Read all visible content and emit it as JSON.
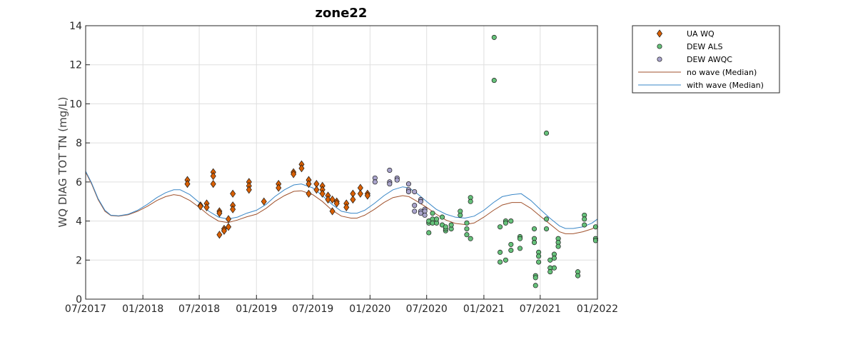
{
  "chart_data": {
    "type": "scatter",
    "title": "zone22",
    "xlabel": "",
    "ylabel": "WQ DIAG TOT TN (mg/L)",
    "xlim": [
      "2017-07-01",
      "2022-01-01"
    ],
    "ylim": [
      0,
      14
    ],
    "x_ticks": [
      "2017-07-01",
      "2018-01-01",
      "2018-07-01",
      "2019-01-01",
      "2019-07-01",
      "2020-01-01",
      "2020-07-01",
      "2021-01-01",
      "2021-07-01",
      "2022-01-01"
    ],
    "x_tick_labels": [
      "07/2017",
      "01/2018",
      "07/2018",
      "01/2019",
      "07/2019",
      "01/2020",
      "07/2020",
      "01/2021",
      "07/2021",
      "01/2022"
    ],
    "y_ticks": [
      0,
      2,
      4,
      6,
      8,
      10,
      12,
      14
    ],
    "y_tick_labels": [
      "0",
      "2",
      "4",
      "6",
      "8",
      "10",
      "12",
      "14"
    ],
    "grid": true,
    "legend_position": "outside-top-right",
    "colors": {
      "ua_wq": "#d95f02",
      "dew_als": "#66c17a",
      "dew_awqc": "#a9a4cc",
      "no_wave": "#a0522d",
      "with_wave": "#3a87c7"
    },
    "series": [
      {
        "name": "UA WQ",
        "kind": "markers",
        "marker": "diamond",
        "color": "#d95f02",
        "points": [
          [
            "2018-05-24",
            6.1
          ],
          [
            "2018-05-24",
            5.9
          ],
          [
            "2018-07-05",
            4.8
          ],
          [
            "2018-07-05",
            4.75
          ],
          [
            "2018-07-25",
            4.9
          ],
          [
            "2018-07-25",
            4.7
          ],
          [
            "2018-08-15",
            6.5
          ],
          [
            "2018-08-15",
            6.3
          ],
          [
            "2018-08-15",
            5.9
          ],
          [
            "2018-09-04",
            4.5
          ],
          [
            "2018-09-04",
            4.4
          ],
          [
            "2018-09-04",
            3.3
          ],
          [
            "2018-09-19",
            3.6
          ],
          [
            "2018-09-19",
            3.5
          ],
          [
            "2018-10-03",
            4.1
          ],
          [
            "2018-10-03",
            3.7
          ],
          [
            "2018-10-17",
            5.4
          ],
          [
            "2018-10-17",
            4.8
          ],
          [
            "2018-10-17",
            4.6
          ],
          [
            "2018-12-08",
            6.0
          ],
          [
            "2018-12-08",
            5.8
          ],
          [
            "2018-12-08",
            5.6
          ],
          [
            "2019-01-25",
            5.0
          ],
          [
            "2019-03-13",
            5.9
          ],
          [
            "2019-03-13",
            5.7
          ],
          [
            "2019-04-30",
            6.5
          ],
          [
            "2019-04-30",
            6.4
          ],
          [
            "2019-05-26",
            6.9
          ],
          [
            "2019-05-26",
            6.7
          ],
          [
            "2019-06-18",
            6.1
          ],
          [
            "2019-06-18",
            5.9
          ],
          [
            "2019-06-18",
            5.4
          ],
          [
            "2019-07-13",
            5.9
          ],
          [
            "2019-07-13",
            5.6
          ],
          [
            "2019-08-01",
            5.8
          ],
          [
            "2019-08-01",
            5.6
          ],
          [
            "2019-08-01",
            5.4
          ],
          [
            "2019-08-19",
            5.3
          ],
          [
            "2019-08-19",
            5.1
          ],
          [
            "2019-09-02",
            5.1
          ],
          [
            "2019-09-02",
            4.5
          ],
          [
            "2019-09-16",
            5.0
          ],
          [
            "2019-09-16",
            4.9
          ],
          [
            "2019-10-17",
            4.9
          ],
          [
            "2019-10-17",
            4.7
          ],
          [
            "2019-11-07",
            5.4
          ],
          [
            "2019-11-07",
            5.1
          ],
          [
            "2019-12-01",
            5.7
          ],
          [
            "2019-12-01",
            5.4
          ],
          [
            "2019-12-24",
            5.4
          ],
          [
            "2019-12-24",
            5.3
          ]
        ]
      },
      {
        "name": "DEW ALS",
        "kind": "markers",
        "marker": "circle",
        "color": "#66c17a",
        "points": [
          [
            "2020-07-08",
            3.4
          ],
          [
            "2020-07-08",
            3.9
          ],
          [
            "2020-07-08",
            4.0
          ],
          [
            "2020-07-20",
            4.1
          ],
          [
            "2020-07-20",
            4.4
          ],
          [
            "2020-07-20",
            3.9
          ],
          [
            "2020-08-02",
            3.9
          ],
          [
            "2020-08-02",
            4.1
          ],
          [
            "2020-08-20",
            3.8
          ],
          [
            "2020-08-20",
            4.2
          ],
          [
            "2020-08-31",
            3.5
          ],
          [
            "2020-08-31",
            3.6
          ],
          [
            "2020-08-31",
            3.7
          ],
          [
            "2020-09-18",
            3.6
          ],
          [
            "2020-09-18",
            3.8
          ],
          [
            "2020-10-17",
            4.5
          ],
          [
            "2020-10-17",
            4.3
          ],
          [
            "2020-11-07",
            3.9
          ],
          [
            "2020-11-07",
            3.6
          ],
          [
            "2020-11-07",
            3.3
          ],
          [
            "2020-11-19",
            5.2
          ],
          [
            "2020-11-19",
            5.0
          ],
          [
            "2020-11-19",
            3.1
          ],
          [
            "2021-02-03",
            13.4
          ],
          [
            "2021-02-03",
            11.2
          ],
          [
            "2021-02-22",
            3.7
          ],
          [
            "2021-02-22",
            2.4
          ],
          [
            "2021-02-22",
            1.9
          ],
          [
            "2021-03-12",
            4.0
          ],
          [
            "2021-03-12",
            3.9
          ],
          [
            "2021-03-12",
            2.0
          ],
          [
            "2021-03-29",
            4.0
          ],
          [
            "2021-03-29",
            2.8
          ],
          [
            "2021-03-29",
            2.5
          ],
          [
            "2021-04-27",
            3.2
          ],
          [
            "2021-04-27",
            3.1
          ],
          [
            "2021-04-27",
            2.6
          ],
          [
            "2021-06-12",
            3.6
          ],
          [
            "2021-06-12",
            3.1
          ],
          [
            "2021-06-12",
            2.9
          ],
          [
            "2021-06-16",
            1.2
          ],
          [
            "2021-06-16",
            1.1
          ],
          [
            "2021-06-16",
            0.7
          ],
          [
            "2021-06-26",
            2.4
          ],
          [
            "2021-06-26",
            2.2
          ],
          [
            "2021-06-26",
            1.9
          ],
          [
            "2021-07-21",
            8.5
          ],
          [
            "2021-07-21",
            4.1
          ],
          [
            "2021-07-21",
            3.6
          ],
          [
            "2021-08-02",
            2.0
          ],
          [
            "2021-08-02",
            1.6
          ],
          [
            "2021-08-02",
            1.4
          ],
          [
            "2021-08-15",
            2.3
          ],
          [
            "2021-08-15",
            2.1
          ],
          [
            "2021-08-15",
            1.6
          ],
          [
            "2021-08-28",
            3.1
          ],
          [
            "2021-08-28",
            2.9
          ],
          [
            "2021-08-28",
            2.7
          ],
          [
            "2021-10-30",
            1.4
          ],
          [
            "2021-10-30",
            1.2
          ],
          [
            "2021-11-20",
            4.3
          ],
          [
            "2021-11-20",
            4.1
          ],
          [
            "2021-11-20",
            3.8
          ],
          [
            "2021-12-26",
            3.7
          ],
          [
            "2021-12-26",
            3.1
          ],
          [
            "2021-12-26",
            3.0
          ]
        ]
      },
      {
        "name": "DEW AWQC",
        "kind": "markers",
        "marker": "circle",
        "color": "#a9a4cc",
        "points": [
          [
            "2020-01-17",
            6.2
          ],
          [
            "2020-01-17",
            6.0
          ],
          [
            "2020-03-04",
            6.6
          ],
          [
            "2020-03-04",
            6.0
          ],
          [
            "2020-03-04",
            5.9
          ],
          [
            "2020-03-28",
            6.2
          ],
          [
            "2020-03-28",
            6.1
          ],
          [
            "2020-05-04",
            5.9
          ],
          [
            "2020-05-04",
            5.6
          ],
          [
            "2020-05-04",
            5.5
          ],
          [
            "2020-05-23",
            5.5
          ],
          [
            "2020-05-23",
            4.8
          ],
          [
            "2020-05-23",
            4.5
          ],
          [
            "2020-06-12",
            5.1
          ],
          [
            "2020-06-12",
            5.0
          ],
          [
            "2020-06-12",
            4.5
          ],
          [
            "2020-06-12",
            4.4
          ],
          [
            "2020-06-25",
            4.6
          ],
          [
            "2020-06-25",
            4.5
          ],
          [
            "2020-06-25",
            4.3
          ]
        ]
      },
      {
        "name": "no wave (Median)",
        "kind": "line",
        "color": "#a0522d",
        "points": [
          [
            "2017-07-01",
            6.5
          ],
          [
            "2017-07-20",
            5.9
          ],
          [
            "2017-08-10",
            5.1
          ],
          [
            "2017-09-01",
            4.5
          ],
          [
            "2017-09-20",
            4.28
          ],
          [
            "2017-10-15",
            4.25
          ],
          [
            "2017-11-15",
            4.32
          ],
          [
            "2017-12-15",
            4.5
          ],
          [
            "2018-01-15",
            4.75
          ],
          [
            "2018-02-15",
            5.05
          ],
          [
            "2018-03-15",
            5.25
          ],
          [
            "2018-04-10",
            5.35
          ],
          [
            "2018-05-01",
            5.3
          ],
          [
            "2018-06-01",
            5.05
          ],
          [
            "2018-07-01",
            4.7
          ],
          [
            "2018-08-01",
            4.3
          ],
          [
            "2018-09-01",
            4.0
          ],
          [
            "2018-10-01",
            3.92
          ],
          [
            "2018-11-01",
            4.05
          ],
          [
            "2018-12-01",
            4.22
          ],
          [
            "2019-01-01",
            4.35
          ],
          [
            "2019-02-01",
            4.65
          ],
          [
            "2019-03-01",
            5.0
          ],
          [
            "2019-04-01",
            5.3
          ],
          [
            "2019-05-01",
            5.52
          ],
          [
            "2019-05-25",
            5.55
          ],
          [
            "2019-07-01",
            5.35
          ],
          [
            "2019-08-01",
            5.0
          ],
          [
            "2019-09-01",
            4.55
          ],
          [
            "2019-10-01",
            4.25
          ],
          [
            "2019-11-01",
            4.15
          ],
          [
            "2019-11-20",
            4.15
          ],
          [
            "2019-12-15",
            4.3
          ],
          [
            "2020-01-15",
            4.6
          ],
          [
            "2020-02-15",
            4.95
          ],
          [
            "2020-03-15",
            5.2
          ],
          [
            "2020-04-15",
            5.3
          ],
          [
            "2020-05-05",
            5.25
          ],
          [
            "2020-06-01",
            5.0
          ],
          [
            "2020-07-01",
            4.7
          ],
          [
            "2020-08-01",
            4.35
          ],
          [
            "2020-09-01",
            4.05
          ],
          [
            "2020-10-01",
            3.88
          ],
          [
            "2020-11-01",
            3.82
          ],
          [
            "2020-12-01",
            3.9
          ],
          [
            "2021-01-01",
            4.2
          ],
          [
            "2021-02-01",
            4.55
          ],
          [
            "2021-03-01",
            4.82
          ],
          [
            "2021-04-01",
            4.95
          ],
          [
            "2021-05-01",
            4.95
          ],
          [
            "2021-06-01",
            4.65
          ],
          [
            "2021-07-01",
            4.25
          ],
          [
            "2021-08-01",
            3.85
          ],
          [
            "2021-09-01",
            3.45
          ],
          [
            "2021-09-20",
            3.35
          ],
          [
            "2021-10-15",
            3.35
          ],
          [
            "2021-11-15",
            3.45
          ],
          [
            "2021-12-15",
            3.6
          ],
          [
            "2022-01-01",
            3.8
          ]
        ]
      },
      {
        "name": "with wave (Median)",
        "kind": "line",
        "color": "#3a87c7",
        "points": [
          [
            "2017-07-01",
            6.55
          ],
          [
            "2017-07-20",
            5.95
          ],
          [
            "2017-08-10",
            5.15
          ],
          [
            "2017-09-01",
            4.55
          ],
          [
            "2017-09-20",
            4.3
          ],
          [
            "2017-10-15",
            4.27
          ],
          [
            "2017-11-15",
            4.35
          ],
          [
            "2017-12-15",
            4.55
          ],
          [
            "2018-01-15",
            4.85
          ],
          [
            "2018-02-15",
            5.2
          ],
          [
            "2018-03-15",
            5.45
          ],
          [
            "2018-04-10",
            5.6
          ],
          [
            "2018-05-01",
            5.6
          ],
          [
            "2018-06-01",
            5.35
          ],
          [
            "2018-07-01",
            4.95
          ],
          [
            "2018-08-01",
            4.5
          ],
          [
            "2018-09-01",
            4.2
          ],
          [
            "2018-10-01",
            4.1
          ],
          [
            "2018-11-01",
            4.2
          ],
          [
            "2018-12-01",
            4.4
          ],
          [
            "2019-01-01",
            4.55
          ],
          [
            "2019-02-01",
            4.85
          ],
          [
            "2019-03-01",
            5.25
          ],
          [
            "2019-04-01",
            5.6
          ],
          [
            "2019-05-01",
            5.85
          ],
          [
            "2019-05-25",
            5.9
          ],
          [
            "2019-07-01",
            5.7
          ],
          [
            "2019-08-01",
            5.3
          ],
          [
            "2019-09-01",
            4.85
          ],
          [
            "2019-10-01",
            4.5
          ],
          [
            "2019-11-01",
            4.4
          ],
          [
            "2019-11-20",
            4.4
          ],
          [
            "2019-12-15",
            4.55
          ],
          [
            "2020-01-15",
            4.9
          ],
          [
            "2020-02-15",
            5.3
          ],
          [
            "2020-03-15",
            5.6
          ],
          [
            "2020-04-15",
            5.75
          ],
          [
            "2020-05-05",
            5.7
          ],
          [
            "2020-06-01",
            5.4
          ],
          [
            "2020-07-01",
            5.0
          ],
          [
            "2020-08-01",
            4.6
          ],
          [
            "2020-09-01",
            4.35
          ],
          [
            "2020-10-01",
            4.2
          ],
          [
            "2020-11-01",
            4.15
          ],
          [
            "2020-12-01",
            4.25
          ],
          [
            "2021-01-01",
            4.55
          ],
          [
            "2021-02-01",
            4.95
          ],
          [
            "2021-03-01",
            5.25
          ],
          [
            "2021-04-01",
            5.35
          ],
          [
            "2021-05-01",
            5.4
          ],
          [
            "2021-06-01",
            5.05
          ],
          [
            "2021-07-01",
            4.6
          ],
          [
            "2021-08-01",
            4.15
          ],
          [
            "2021-09-01",
            3.75
          ],
          [
            "2021-09-20",
            3.62
          ],
          [
            "2021-10-15",
            3.62
          ],
          [
            "2021-11-15",
            3.7
          ],
          [
            "2021-12-15",
            3.9
          ],
          [
            "2022-01-01",
            4.1
          ]
        ]
      }
    ]
  }
}
